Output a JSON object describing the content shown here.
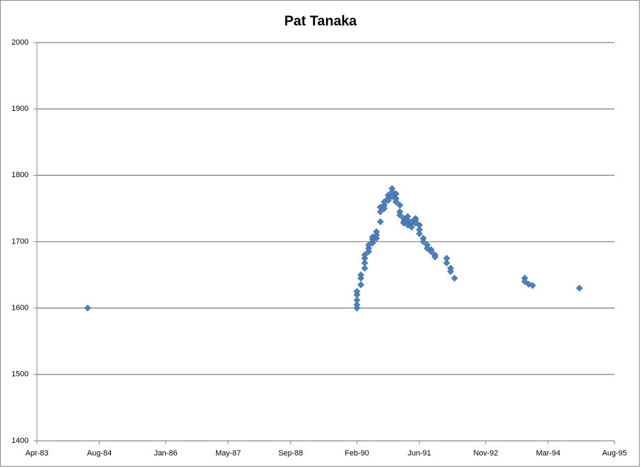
{
  "chart_data": {
    "type": "scatter",
    "title": "Pat Tanaka",
    "color": "#4f81bd",
    "grid": true,
    "x": [
      "1984-05",
      "1990-02",
      "1990-02",
      "1990-02",
      "1990-02",
      "1990-02",
      "1990-03",
      "1990-03",
      "1990-03",
      "1990-04",
      "1990-04",
      "1990-04",
      "1990-04",
      "1990-05",
      "1990-05",
      "1990-05",
      "1990-06",
      "1990-06",
      "1990-06",
      "1990-07",
      "1990-07",
      "1990-07",
      "1990-08",
      "1990-08",
      "1990-08",
      "1990-09",
      "1990-09",
      "1990-09",
      "1990-10",
      "1990-10",
      "1990-10",
      "1990-11",
      "1990-11",
      "1990-11",
      "1990-12",
      "1990-12",
      "1990-12",
      "1991-01",
      "1991-01",
      "1991-01",
      "1991-02",
      "1991-02",
      "1991-02",
      "1991-03",
      "1991-03",
      "1991-03",
      "1991-04",
      "1991-04",
      "1991-04",
      "1991-05",
      "1991-05",
      "1991-05",
      "1991-06",
      "1991-06",
      "1991-06",
      "1991-07",
      "1991-07",
      "1991-08",
      "1991-08",
      "1991-09",
      "1991-09",
      "1991-10",
      "1991-10",
      "1992-01",
      "1992-01",
      "1992-02",
      "1992-02",
      "1992-03",
      "1993-09",
      "1993-09",
      "1993-10",
      "1993-11",
      "1994-11"
    ],
    "values": [
      1600,
      1600,
      1605,
      1612,
      1620,
      1625,
      1635,
      1645,
      1650,
      1660,
      1668,
      1675,
      1680,
      1685,
      1690,
      1695,
      1698,
      1703,
      1707,
      1705,
      1710,
      1715,
      1730,
      1745,
      1752,
      1755,
      1750,
      1760,
      1770,
      1765,
      1762,
      1780,
      1775,
      1768,
      1772,
      1765,
      1760,
      1755,
      1745,
      1740,
      1735,
      1730,
      1728,
      1732,
      1738,
      1725,
      1728,
      1722,
      1730,
      1735,
      1732,
      1728,
      1725,
      1718,
      1712,
      1705,
      1700,
      1695,
      1690,
      1688,
      1685,
      1680,
      1677,
      1675,
      1668,
      1660,
      1655,
      1645,
      1645,
      1640,
      1636,
      1634,
      1630
    ],
    "xlim": [
      "1983-04",
      "1995-08"
    ],
    "xticks": [
      {
        "value": "1983-04",
        "label": "Apr-83"
      },
      {
        "value": "1984-08",
        "label": "Aug-84"
      },
      {
        "value": "1986-01",
        "label": "Jan-86"
      },
      {
        "value": "1987-05",
        "label": "May-87"
      },
      {
        "value": "1988-09",
        "label": "Sep-88"
      },
      {
        "value": "1990-02",
        "label": "Feb-90"
      },
      {
        "value": "1991-06",
        "label": "Jun-91"
      },
      {
        "value": "1992-11",
        "label": "Nov-92"
      },
      {
        "value": "1994-03",
        "label": "Mar-94"
      },
      {
        "value": "1995-08",
        "label": "Aug-95"
      }
    ],
    "ylim": [
      1400,
      2000
    ],
    "yticks": [
      1400,
      1500,
      1600,
      1700,
      1800,
      1900,
      2000
    ]
  }
}
